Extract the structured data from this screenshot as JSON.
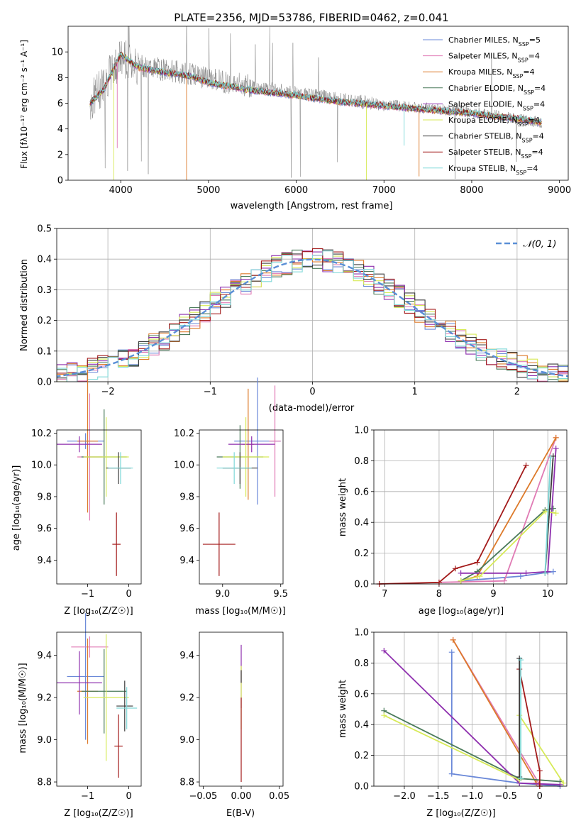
{
  "chart_data": [
    {
      "id": "spectrum",
      "type": "line",
      "title": "PLATE=2356, MJD=53786, FIBERID=0462, z=0.041",
      "xlabel": "wavelength [Angstrom, rest frame]",
      "ylabel": "Flux [fλ10⁻¹⁷ erg cm⁻² s⁻¹ A⁻¹]",
      "xlim": [
        3400,
        9100
      ],
      "ylim": [
        0,
        12
      ],
      "xticks": [
        4000,
        5000,
        6000,
        7000,
        8000,
        9000
      ],
      "yticks": [
        0,
        2,
        4,
        6,
        8,
        10
      ],
      "legend_position": "upper right",
      "data_spectrum": {
        "color": "#808080",
        "x": [
          3650,
          3800,
          4000,
          4200,
          4500,
          4800,
          5000,
          5500,
          6000,
          6500,
          7000,
          7500,
          8000,
          8500,
          8800
        ],
        "y": [
          6.0,
          7.5,
          9.5,
          9.0,
          8.6,
          8.3,
          7.9,
          7.3,
          6.8,
          6.3,
          5.9,
          5.6,
          5.3,
          4.8,
          4.5
        ]
      },
      "series": [
        {
          "name": "Chabrier MILES, N",
          "sub": "SSP",
          "suffix": "=5",
          "color": "#6a88d8"
        },
        {
          "name": "Salpeter MILES, N",
          "sub": "SSP",
          "suffix": "=4",
          "color": "#e07ab4"
        },
        {
          "name": "Kroupa MILES, N",
          "sub": "SSP",
          "suffix": "=4",
          "color": "#dd7a2a"
        },
        {
          "name": "Chabrier ELODIE, N",
          "sub": "SSP",
          "suffix": "=4",
          "color": "#4a7a5a"
        },
        {
          "name": "Salpeter ELODIE, N",
          "sub": "SSP",
          "suffix": "=4",
          "color": "#8e2fae"
        },
        {
          "name": "Kroupa ELODIE, N",
          "sub": "SSP",
          "suffix": "=4",
          "color": "#d7ea57"
        },
        {
          "name": "Chabrier STELIB, N",
          "sub": "SSP",
          "suffix": "=4",
          "color": "#3c3c3c"
        },
        {
          "name": "Salpeter STELIB, N",
          "sub": "SSP",
          "suffix": "=4",
          "color": "#a31a1a"
        },
        {
          "name": "Kroupa STELIB, N",
          "sub": "SSP",
          "suffix": "=4",
          "color": "#7fd8d8"
        }
      ],
      "model_x": [
        3650,
        3800,
        4000,
        4200,
        4500,
        4800,
        5000,
        5500,
        6000,
        6500,
        7000,
        7500,
        8000,
        8500,
        8800
      ],
      "model_y": [
        6.0,
        7.0,
        9.8,
        8.8,
        8.4,
        8.1,
        7.6,
        7.0,
        6.6,
        6.1,
        5.8,
        5.5,
        5.2,
        4.8,
        4.5
      ],
      "dips": [
        {
          "x": 3920,
          "y": 0.0
        },
        {
          "x": 4750,
          "y": 0.0
        },
        {
          "x": 6800,
          "y": 0.0
        },
        {
          "x": 7400,
          "y": 0.3
        },
        {
          "x": 7230,
          "y": 2.7
        },
        {
          "x": 3960,
          "y": 2.5
        }
      ]
    },
    {
      "id": "residuals",
      "type": "line",
      "xlabel": "(data-model)/error",
      "ylabel": "Normed distribution",
      "xlim": [
        -2.5,
        2.5
      ],
      "ylim": [
        0,
        0.5
      ],
      "xticks": [
        -2,
        -1,
        0,
        1,
        2
      ],
      "yticks": [
        0.0,
        0.1,
        0.2,
        0.3,
        0.4,
        0.5
      ],
      "grid": true,
      "legend_position": "upper right",
      "gaussian_label": "𝒩(0, 1)",
      "gaussian_color": "#5a8fd6"
    },
    {
      "id": "age-vs-Z",
      "type": "scatter",
      "xlabel": "Z [log₁₀(Z/Z☉)]",
      "ylabel": "age  [log₁₀(age/yr)]",
      "xlim": [
        -1.75,
        0.3
      ],
      "ylim": [
        9.25,
        10.22
      ],
      "xticks": [
        -1,
        0
      ],
      "yticks": [
        9.4,
        9.6,
        9.8,
        10.0,
        10.2
      ],
      "points": [
        {
          "x": -1.05,
          "y": 10.15,
          "xerr": 0.45,
          "yerr": 0.05,
          "color": "#6a88d8"
        },
        {
          "x": -0.95,
          "y": 10.05,
          "xerr": 0.3,
          "yerr": 0.4,
          "color": "#e07ab4"
        },
        {
          "x": -1.0,
          "y": 10.15,
          "xerr": 0.25,
          "yerr": 0.45,
          "color": "#dd7a2a"
        },
        {
          "x": -0.6,
          "y": 10.05,
          "xerr": 0.55,
          "yerr": 0.3,
          "color": "#4a7a5a"
        },
        {
          "x": -1.2,
          "y": 10.13,
          "xerr": 0.55,
          "yerr": 0.05,
          "color": "#8e2fae"
        },
        {
          "x": -0.55,
          "y": 10.05,
          "xerr": 0.55,
          "yerr": 0.25,
          "color": "#d7ea57"
        },
        {
          "x": -0.3,
          "y": 9.5,
          "xerr": 0.1,
          "yerr": 0.2,
          "color": "#a31a1a"
        },
        {
          "x": -0.25,
          "y": 9.98,
          "xerr": 0.3,
          "yerr": 0.1,
          "color": "#3c3c3c"
        },
        {
          "x": -0.2,
          "y": 9.98,
          "xerr": 0.3,
          "yerr": 0.1,
          "color": "#7fd8d8"
        }
      ]
    },
    {
      "id": "age-vs-mass",
      "type": "scatter",
      "xlabel": "mass [log₁₀(M/M☉)]",
      "xlim": [
        8.8,
        9.52
      ],
      "ylim": [
        9.25,
        10.22
      ],
      "xticks": [
        9.0,
        9.5
      ],
      "yticks": [
        9.4,
        9.6,
        9.8,
        10.0,
        10.2
      ],
      "points": [
        {
          "x": 9.3,
          "y": 10.15,
          "xerr": 0.2,
          "yerr": 0.4,
          "color": "#6a88d8"
        },
        {
          "x": 9.45,
          "y": 10.15,
          "xerr": 0.05,
          "yerr": 0.35,
          "color": "#e07ab4"
        },
        {
          "x": 9.22,
          "y": 10.13,
          "xerr": 0.05,
          "yerr": 0.35,
          "color": "#dd7a2a"
        },
        {
          "x": 9.15,
          "y": 10.05,
          "xerr": 0.2,
          "yerr": 0.2,
          "color": "#4a7a5a"
        },
        {
          "x": 9.25,
          "y": 10.13,
          "xerr": 0.2,
          "yerr": 0.05,
          "color": "#8e2fae"
        },
        {
          "x": 9.2,
          "y": 10.05,
          "xerr": 0.2,
          "yerr": 0.25,
          "color": "#d7ea57"
        },
        {
          "x": 8.97,
          "y": 9.5,
          "xerr": 0.14,
          "yerr": 0.2,
          "color": "#a31a1a"
        },
        {
          "x": 9.15,
          "y": 9.98,
          "xerr": 0.15,
          "yerr": 0.1,
          "color": "#3c3c3c"
        },
        {
          "x": 9.1,
          "y": 9.98,
          "xerr": 0.15,
          "yerr": 0.1,
          "color": "#7fd8d8"
        }
      ]
    },
    {
      "id": "weight-vs-age",
      "type": "line",
      "xlabel": "age  [log₁₀(age/yr)]",
      "ylabel": "mass weight",
      "xlim": [
        6.8,
        10.35
      ],
      "ylim": [
        0,
        1.0
      ],
      "xticks": [
        7,
        8,
        9,
        10
      ],
      "yticks": [
        0.0,
        0.2,
        0.4,
        0.6,
        0.8,
        1.0
      ],
      "grid": true,
      "series": [
        {
          "color": "#6a88d8",
          "x": [
            8.4,
            9.5,
            10.1
          ],
          "y": [
            0.02,
            0.05,
            0.08
          ]
        },
        {
          "color": "#e07ab4",
          "x": [
            8.0,
            9.2,
            10.15
          ],
          "y": [
            0.01,
            0.02,
            0.95
          ]
        },
        {
          "color": "#dd7a2a",
          "x": [
            8.4,
            8.7,
            10.15
          ],
          "y": [
            0.02,
            0.05,
            0.95
          ]
        },
        {
          "color": "#4a7a5a",
          "x": [
            8.4,
            8.7,
            9.95,
            10.1
          ],
          "y": [
            0.02,
            0.08,
            0.48,
            0.49
          ]
        },
        {
          "color": "#8e2fae",
          "x": [
            8.4,
            9.6,
            10.0,
            10.15
          ],
          "y": [
            0.07,
            0.07,
            0.08,
            0.88
          ]
        },
        {
          "color": "#d7ea57",
          "x": [
            8.4,
            8.75,
            9.95,
            10.15
          ],
          "y": [
            0.02,
            0.05,
            0.47,
            0.46
          ]
        },
        {
          "color": "#a31a1a",
          "x": [
            6.9,
            8.0,
            8.3,
            8.7,
            9.6
          ],
          "y": [
            0.0,
            0.01,
            0.1,
            0.14,
            0.77
          ]
        },
        {
          "color": "#3c3c3c",
          "x": [
            9.95,
            10.1
          ],
          "y": [
            0.07,
            0.83
          ]
        },
        {
          "color": "#7fd8d8",
          "x": [
            9.95,
            10.05
          ],
          "y": [
            0.07,
            0.82
          ]
        }
      ]
    },
    {
      "id": "mass-vs-Z",
      "type": "scatter",
      "xlabel": "Z [log₁₀(Z/Z☉)]",
      "ylabel": "mass [log₁₀(M/M☉)]",
      "xlim": [
        -1.75,
        0.3
      ],
      "ylim": [
        8.78,
        9.51
      ],
      "xticks": [
        -1,
        0
      ],
      "yticks": [
        8.8,
        9.0,
        9.2,
        9.4
      ],
      "points": [
        {
          "x": -1.05,
          "y": 9.3,
          "xerr": 0.45,
          "yerr": 0.3,
          "color": "#6a88d8"
        },
        {
          "x": -0.95,
          "y": 9.44,
          "xerr": 0.45,
          "yerr": 0.05,
          "color": "#e07ab4"
        },
        {
          "x": -1.0,
          "y": 9.23,
          "xerr": 0.25,
          "yerr": 0.25,
          "color": "#dd7a2a"
        },
        {
          "x": -0.6,
          "y": 9.23,
          "xerr": 0.55,
          "yerr": 0.2,
          "color": "#4a7a5a"
        },
        {
          "x": -1.2,
          "y": 9.27,
          "xerr": 0.55,
          "yerr": 0.15,
          "color": "#8e2fae"
        },
        {
          "x": -0.55,
          "y": 9.2,
          "xerr": 0.55,
          "yerr": 0.3,
          "color": "#d7ea57"
        },
        {
          "x": -0.25,
          "y": 8.97,
          "xerr": 0.1,
          "yerr": 0.15,
          "color": "#a31a1a"
        },
        {
          "x": -0.1,
          "y": 9.16,
          "xerr": 0.2,
          "yerr": 0.12,
          "color": "#3c3c3c"
        },
        {
          "x": -0.05,
          "y": 9.15,
          "xerr": 0.25,
          "yerr": 0.1,
          "color": "#7fd8d8"
        }
      ]
    },
    {
      "id": "mass-vs-EBV",
      "type": "scatter",
      "xlabel": "E(B-V)",
      "xlim": [
        -0.055,
        0.055
      ],
      "ylim": [
        8.78,
        9.51
      ],
      "xticks": [
        -0.05,
        0.0,
        0.05
      ],
      "yticks": [
        8.8,
        9.0,
        9.2,
        9.4
      ],
      "points": [
        {
          "x": 0.0,
          "y": 9.3,
          "xerr": 0.0,
          "yerr": 0.15,
          "color": "#8e2fae"
        },
        {
          "x": 0.0,
          "y": 9.2,
          "xerr": 0.0,
          "yerr": 0.15,
          "color": "#d7ea57"
        },
        {
          "x": 0.0,
          "y": 9.0,
          "xerr": 0.0,
          "yerr": 0.2,
          "color": "#a31a1a"
        },
        {
          "x": 0.0,
          "y": 9.3,
          "xerr": 0.0,
          "yerr": 0.03,
          "color": "#3c3c3c"
        }
      ]
    },
    {
      "id": "weight-vs-Z",
      "type": "line",
      "xlabel": "Z [log₁₀(Z/Z☉)]",
      "ylabel": "mass weight",
      "xlim": [
        -2.45,
        0.4
      ],
      "ylim": [
        0,
        1.0
      ],
      "xticks": [
        -2.0,
        -1.5,
        -1.0,
        -0.5,
        0.0
      ],
      "yticks": [
        0.0,
        0.2,
        0.4,
        0.6,
        0.8,
        1.0
      ],
      "grid": true,
      "series": [
        {
          "color": "#6a88d8",
          "x": [
            -1.3,
            -1.3,
            -0.3,
            0.3
          ],
          "y": [
            0.87,
            0.08,
            0.02,
            0.0
          ]
        },
        {
          "color": "#e07ab4",
          "x": [
            -1.28,
            0.0
          ],
          "y": [
            0.95,
            0.01
          ]
        },
        {
          "color": "#dd7a2a",
          "x": [
            -1.28,
            -0.05
          ],
          "y": [
            0.95,
            0.02
          ]
        },
        {
          "color": "#4a7a5a",
          "x": [
            -2.3,
            -0.3,
            0.3
          ],
          "y": [
            0.49,
            0.05,
            0.03
          ]
        },
        {
          "color": "#8e2fae",
          "x": [
            -2.3,
            -0.3,
            0.3
          ],
          "y": [
            0.88,
            0.02,
            0.01
          ]
        },
        {
          "color": "#d7ea57",
          "x": [
            -2.3,
            -0.3,
            -0.3,
            0.35
          ],
          "y": [
            0.46,
            0.04,
            0.46,
            0.02
          ]
        },
        {
          "color": "#a31a1a",
          "x": [
            -0.3,
            0.0,
            0.0
          ],
          "y": [
            0.76,
            0.1,
            0.0
          ]
        },
        {
          "color": "#3c3c3c",
          "x": [
            -0.3,
            -0.3
          ],
          "y": [
            0.83,
            0.06
          ]
        },
        {
          "color": "#7fd8d8",
          "x": [
            -0.28,
            -0.28
          ],
          "y": [
            0.82,
            0.05
          ]
        }
      ]
    }
  ]
}
